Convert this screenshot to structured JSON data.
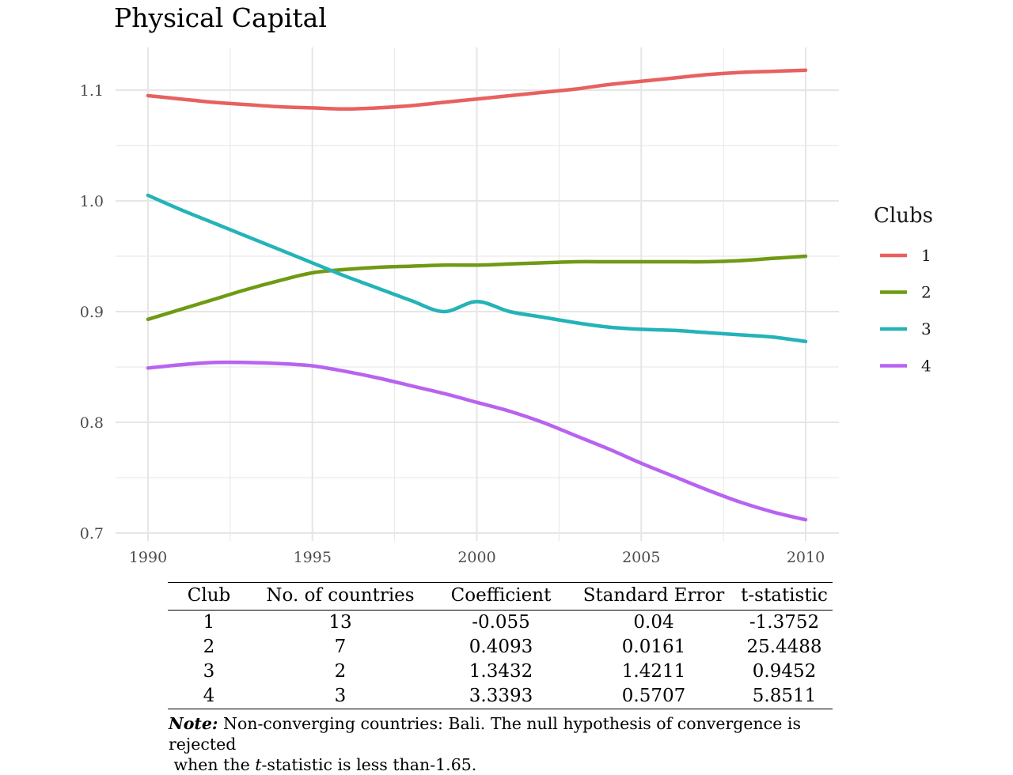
{
  "colors": {
    "club1": "#e8615f",
    "club2": "#6f9a14",
    "club3": "#24b3b8",
    "club4": "#b863f0",
    "grid": "#e6e6e6"
  },
  "chart_data": {
    "type": "line",
    "title": "Physical Capital",
    "xlabel": "",
    "ylabel": "",
    "xlim": [
      1990,
      2010
    ],
    "ylim": [
      0.7,
      1.13
    ],
    "x_ticks": [
      1990,
      1995,
      2000,
      2005,
      2010
    ],
    "y_ticks": [
      0.7,
      0.8,
      0.9,
      1.0,
      1.1
    ],
    "x_tick_labels": [
      "1990",
      "1995",
      "2000",
      "2005",
      "2010"
    ],
    "y_tick_labels": [
      "0.7",
      "0.8",
      "0.9",
      "1.0",
      "1.1"
    ],
    "grid": true,
    "legend": {
      "title": "Clubs",
      "position": "right"
    },
    "x": [
      1990,
      1991,
      1992,
      1993,
      1994,
      1995,
      1996,
      1997,
      1998,
      1999,
      2000,
      2001,
      2002,
      2003,
      2004,
      2005,
      2006,
      2007,
      2008,
      2009,
      2010
    ],
    "series": [
      {
        "name": "1",
        "color": "#e8615f",
        "values": [
          1.095,
          1.092,
          1.089,
          1.087,
          1.085,
          1.084,
          1.083,
          1.084,
          1.086,
          1.089,
          1.092,
          1.095,
          1.098,
          1.101,
          1.105,
          1.108,
          1.111,
          1.114,
          1.116,
          1.117,
          1.118
        ]
      },
      {
        "name": "2",
        "color": "#6f9a14",
        "values": [
          0.893,
          0.902,
          0.911,
          0.92,
          0.928,
          0.935,
          0.938,
          0.94,
          0.941,
          0.942,
          0.942,
          0.943,
          0.944,
          0.945,
          0.945,
          0.945,
          0.945,
          0.945,
          0.946,
          0.948,
          0.95
        ]
      },
      {
        "name": "3",
        "color": "#24b3b8",
        "values": [
          1.005,
          0.992,
          0.98,
          0.968,
          0.956,
          0.944,
          0.932,
          0.921,
          0.91,
          0.9,
          0.909,
          0.9,
          0.895,
          0.89,
          0.886,
          0.884,
          0.883,
          0.881,
          0.879,
          0.877,
          0.873
        ]
      },
      {
        "name": "4",
        "color": "#b863f0",
        "values": [
          0.849,
          0.852,
          0.854,
          0.854,
          0.853,
          0.851,
          0.846,
          0.84,
          0.833,
          0.826,
          0.818,
          0.81,
          0.8,
          0.788,
          0.776,
          0.763,
          0.751,
          0.739,
          0.728,
          0.719,
          0.712
        ]
      }
    ]
  },
  "table": {
    "headers": [
      "Club",
      "No. of countries",
      "Coefficient",
      "Standard Error",
      "t-statistic"
    ],
    "rows": [
      [
        "1",
        "13",
        "-0.055",
        "0.04",
        "-1.3752"
      ],
      [
        "2",
        "7",
        "0.4093",
        "0.0161",
        "25.4488"
      ],
      [
        "3",
        "2",
        "1.3432",
        "1.4211",
        "0.9452"
      ],
      [
        "4",
        "3",
        "3.3393",
        "0.5707",
        "5.8511"
      ]
    ]
  },
  "note": {
    "label": "Note:",
    "text1": " Non-converging countries: Bali. The null hypothesis of convergence is rejected",
    "text2": "when the ",
    "italic": "t",
    "text3": "-statistic is less than-1.65."
  }
}
